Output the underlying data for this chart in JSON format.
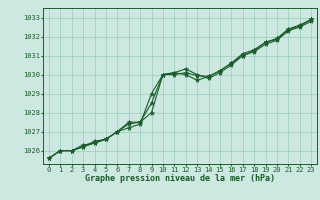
{
  "title": "Graphe pression niveau de la mer (hPa)",
  "background_color": "#cce8e0",
  "grid_color": "#99ccbb",
  "line_color": "#1a5c2a",
  "xlim": [
    -0.5,
    23.5
  ],
  "ylim": [
    1025.3,
    1033.5
  ],
  "yticks": [
    1026,
    1027,
    1028,
    1029,
    1030,
    1031,
    1032,
    1033
  ],
  "xticks": [
    0,
    1,
    2,
    3,
    4,
    5,
    6,
    7,
    8,
    9,
    10,
    11,
    12,
    13,
    14,
    15,
    16,
    17,
    18,
    19,
    20,
    21,
    22,
    23
  ],
  "series1": [
    1025.6,
    1026.0,
    1026.0,
    1026.3,
    1026.4,
    1026.6,
    1027.0,
    1027.2,
    1027.4,
    1029.0,
    1030.0,
    1030.1,
    1030.3,
    1030.0,
    1029.8,
    1030.1,
    1030.5,
    1031.0,
    1031.2,
    1031.6,
    1031.8,
    1032.3,
    1032.5,
    1032.8
  ],
  "series2": [
    1025.6,
    1026.0,
    1026.0,
    1026.2,
    1026.5,
    1026.6,
    1027.0,
    1027.5,
    1027.5,
    1028.0,
    1030.0,
    1030.1,
    1030.0,
    1029.7,
    1029.9,
    1030.2,
    1030.6,
    1031.1,
    1031.3,
    1031.7,
    1031.9,
    1032.4,
    1032.6,
    1032.9
  ],
  "series3": [
    1025.6,
    1026.0,
    1026.0,
    1026.2,
    1026.4,
    1026.6,
    1027.0,
    1027.4,
    1027.5,
    1028.5,
    1030.0,
    1030.0,
    1030.1,
    1029.95,
    1029.9,
    1030.2,
    1030.6,
    1031.0,
    1031.25,
    1031.7,
    1031.85,
    1032.35,
    1032.55,
    1032.9
  ],
  "title_fontsize": 6.0,
  "tick_fontsize": 5.0
}
